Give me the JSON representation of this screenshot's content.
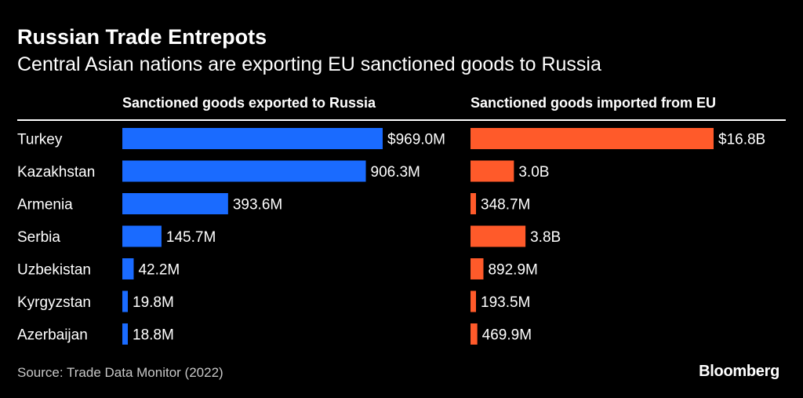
{
  "title": "Russian Trade Entrepots",
  "subtitle": "Central Asian nations are exporting EU sanctioned goods to Russia",
  "source": "Source: Trade Data Monitor (2022)",
  "brand": "Bloomberg",
  "colors": {
    "exports": "#1a6bff",
    "imports": "#ff5a2a",
    "background": "#000000",
    "text": "#ffffff"
  },
  "chart_data": {
    "type": "bar",
    "orientation": "horizontal",
    "categories": [
      "Turkey",
      "Kazakhstan",
      "Armenia",
      "Serbia",
      "Uzbekistan",
      "Kyrgyzstan",
      "Azerbaijan"
    ],
    "series": [
      {
        "name": "Sanctioned goods exported to Russia",
        "unit": "USD millions",
        "values": [
          969.0,
          906.3,
          393.6,
          145.7,
          42.2,
          19.8,
          18.8
        ],
        "labels": [
          "$969.0M",
          "906.3M",
          "393.6M",
          "145.7M",
          "42.2M",
          "19.8M",
          "18.8M"
        ],
        "max": 969.0
      },
      {
        "name": "Sanctioned goods imported from EU",
        "unit": "USD millions",
        "values": [
          16800,
          3000,
          348.7,
          3800,
          892.9,
          193.5,
          469.9
        ],
        "labels": [
          "$16.8B",
          "3.0B",
          "348.7M",
          "3.8B",
          "892.9M",
          "193.5M",
          "469.9M"
        ],
        "max": 16800
      }
    ]
  }
}
